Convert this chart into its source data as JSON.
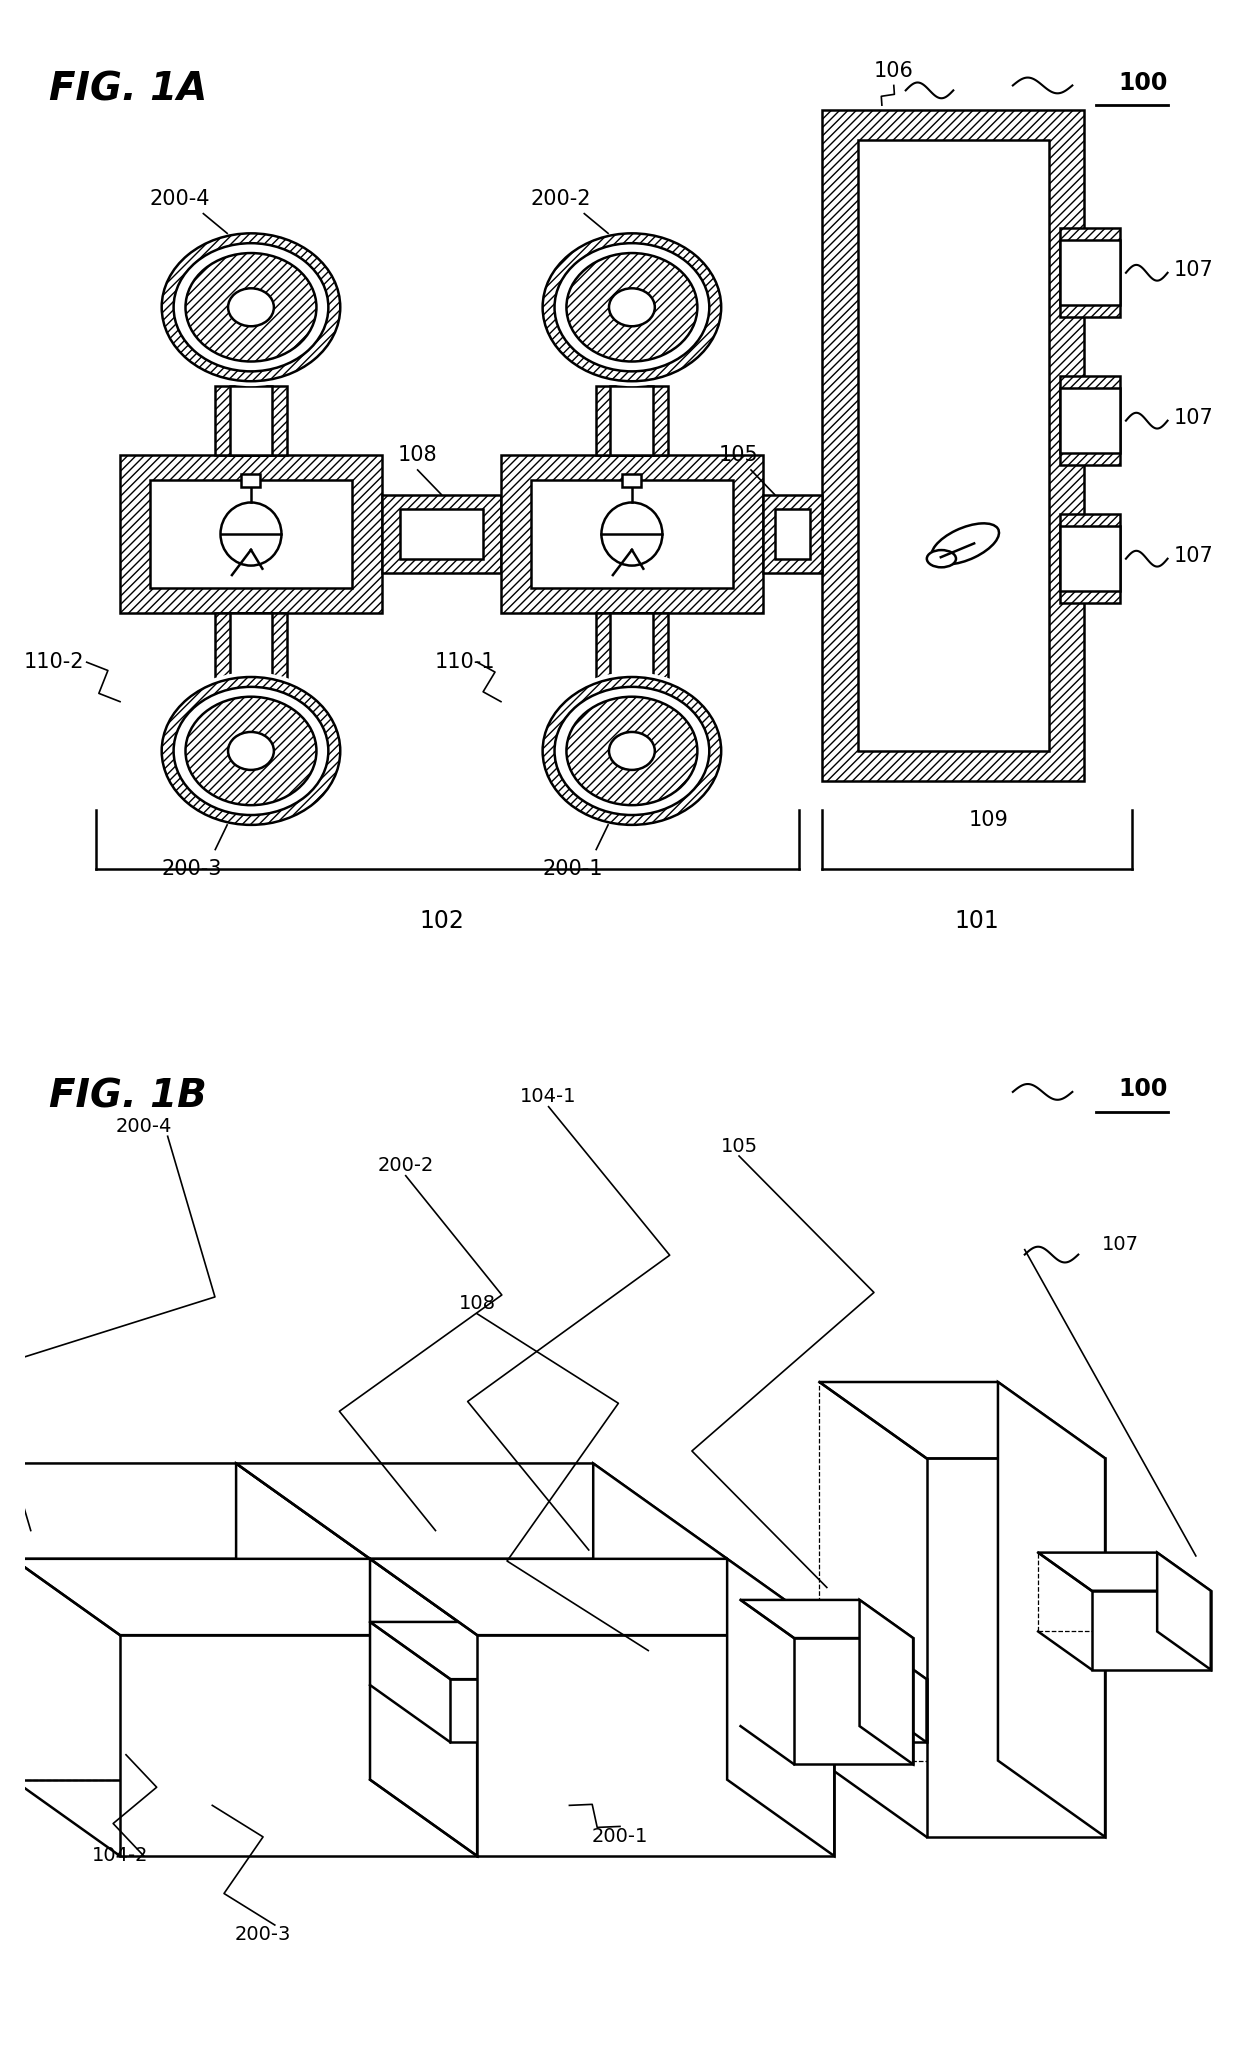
{
  "title_1A": "FIG. 1A",
  "title_1B": "FIG. 1B",
  "bg_color": "#ffffff",
  "labels": {
    "100": "100",
    "101": "101",
    "102": "102",
    "105": "105",
    "106": "106",
    "107": "107",
    "108": "108",
    "109": "109",
    "110_1": "110-1",
    "110_2": "110-2",
    "104_1": "104-1",
    "104_2": "104-2",
    "200_1": "200-1",
    "200_2": "200-2",
    "200_3": "200-3",
    "200_4": "200-4"
  }
}
